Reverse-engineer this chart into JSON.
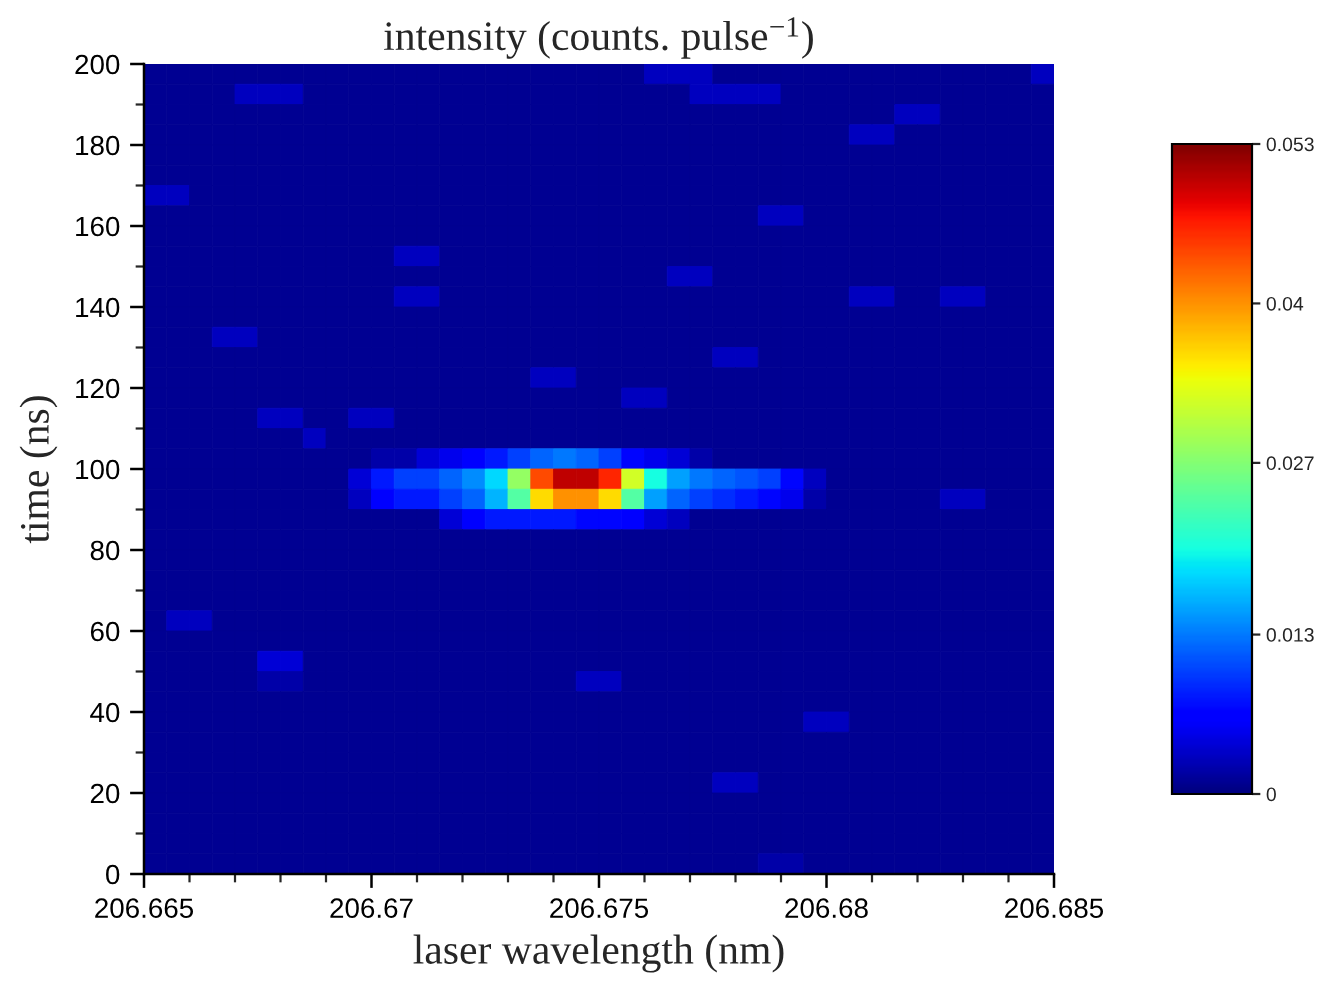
{
  "chart_data": {
    "type": "heatmap",
    "title": "intensity (counts. pulse$^{−1}$)",
    "xlabel": "laser wavelength (nm)",
    "ylabel": "time (ns)",
    "cells": [
      [
        0.001,
        0.001,
        0.001,
        0.001,
        0.001,
        0.001,
        0.001,
        0.001,
        0.001,
        0.001,
        0.001,
        0.001,
        0.001,
        0.001,
        0.001,
        0.001,
        0.001,
        0.001,
        0.001,
        0.001,
        0.001,
        0.001,
        0.003,
        0.003,
        0.003,
        0.001,
        0.001,
        0.001,
        0.001,
        0.001,
        0.001,
        0.001,
        0.001,
        0.001,
        0.001,
        0.001,
        0.001,
        0.001,
        0.001,
        0.003
      ],
      [
        0.001,
        0.001,
        0.001,
        0.001,
        0.003,
        0.003,
        0.003,
        0.001,
        0.001,
        0.001,
        0.001,
        0.001,
        0.001,
        0.001,
        0.001,
        0.001,
        0.001,
        0.001,
        0.001,
        0.001,
        0.001,
        0.001,
        0.001,
        0.001,
        0.003,
        0.003,
        0.003,
        0.003,
        0.001,
        0.001,
        0.001,
        0.001,
        0.001,
        0.001,
        0.001,
        0.001,
        0.001,
        0.001,
        0.001,
        0.001
      ],
      [
        0.001,
        0.001,
        0.001,
        0.001,
        0.001,
        0.001,
        0.001,
        0.001,
        0.001,
        0.001,
        0.001,
        0.001,
        0.001,
        0.001,
        0.001,
        0.001,
        0.001,
        0.001,
        0.001,
        0.001,
        0.001,
        0.001,
        0.001,
        0.001,
        0.001,
        0.001,
        0.001,
        0.001,
        0.001,
        0.001,
        0.001,
        0.001,
        0.001,
        0.003,
        0.003,
        0.001,
        0.001,
        0.001,
        0.001,
        0.001
      ],
      [
        0.001,
        0.001,
        0.001,
        0.001,
        0.001,
        0.001,
        0.001,
        0.001,
        0.001,
        0.001,
        0.001,
        0.001,
        0.001,
        0.001,
        0.001,
        0.001,
        0.001,
        0.001,
        0.001,
        0.001,
        0.001,
        0.001,
        0.001,
        0.001,
        0.001,
        0.001,
        0.001,
        0.001,
        0.001,
        0.001,
        0.001,
        0.003,
        0.003,
        0.001,
        0.001,
        0.001,
        0.001,
        0.001,
        0.001,
        0.001
      ],
      [
        0.001,
        0.001,
        0.001,
        0.001,
        0.001,
        0.001,
        0.001,
        0.001,
        0.001,
        0.001,
        0.001,
        0.001,
        0.001,
        0.001,
        0.001,
        0.001,
        0.001,
        0.001,
        0.001,
        0.001,
        0.001,
        0.001,
        0.001,
        0.001,
        0.001,
        0.001,
        0.001,
        0.001,
        0.001,
        0.001,
        0.001,
        0.001,
        0.001,
        0.001,
        0.001,
        0.001,
        0.001,
        0.001,
        0.001,
        0.001
      ],
      [
        0.001,
        0.001,
        0.001,
        0.001,
        0.001,
        0.001,
        0.001,
        0.001,
        0.001,
        0.001,
        0.001,
        0.001,
        0.001,
        0.001,
        0.001,
        0.001,
        0.001,
        0.001,
        0.001,
        0.001,
        0.001,
        0.001,
        0.001,
        0.001,
        0.001,
        0.001,
        0.001,
        0.001,
        0.001,
        0.001,
        0.001,
        0.001,
        0.001,
        0.001,
        0.001,
        0.001,
        0.001,
        0.001,
        0.001,
        0.001
      ],
      [
        0.003,
        0.003,
        0.001,
        0.001,
        0.001,
        0.001,
        0.001,
        0.001,
        0.001,
        0.001,
        0.001,
        0.001,
        0.001,
        0.001,
        0.001,
        0.001,
        0.001,
        0.001,
        0.001,
        0.001,
        0.001,
        0.001,
        0.001,
        0.001,
        0.001,
        0.001,
        0.001,
        0.001,
        0.001,
        0.001,
        0.001,
        0.001,
        0.001,
        0.001,
        0.001,
        0.001,
        0.001,
        0.001,
        0.001,
        0.001
      ],
      [
        0.001,
        0.001,
        0.001,
        0.001,
        0.001,
        0.001,
        0.001,
        0.001,
        0.001,
        0.001,
        0.001,
        0.001,
        0.001,
        0.001,
        0.001,
        0.001,
        0.001,
        0.001,
        0.001,
        0.001,
        0.001,
        0.001,
        0.001,
        0.001,
        0.001,
        0.001,
        0.001,
        0.003,
        0.003,
        0.001,
        0.001,
        0.001,
        0.001,
        0.001,
        0.001,
        0.001,
        0.001,
        0.001,
        0.001,
        0.001
      ],
      [
        0.001,
        0.001,
        0.001,
        0.001,
        0.001,
        0.001,
        0.001,
        0.001,
        0.001,
        0.001,
        0.001,
        0.001,
        0.001,
        0.001,
        0.001,
        0.001,
        0.001,
        0.001,
        0.001,
        0.001,
        0.001,
        0.001,
        0.001,
        0.001,
        0.001,
        0.001,
        0.001,
        0.001,
        0.001,
        0.001,
        0.001,
        0.001,
        0.001,
        0.001,
        0.001,
        0.001,
        0.001,
        0.001,
        0.001,
        0.001
      ],
      [
        0.001,
        0.001,
        0.001,
        0.001,
        0.001,
        0.001,
        0.001,
        0.001,
        0.001,
        0.001,
        0.001,
        0.003,
        0.003,
        0.001,
        0.001,
        0.001,
        0.001,
        0.001,
        0.001,
        0.001,
        0.001,
        0.001,
        0.001,
        0.001,
        0.001,
        0.001,
        0.001,
        0.001,
        0.001,
        0.001,
        0.001,
        0.001,
        0.001,
        0.001,
        0.001,
        0.001,
        0.001,
        0.001,
        0.001,
        0.001
      ],
      [
        0.001,
        0.001,
        0.001,
        0.001,
        0.001,
        0.001,
        0.001,
        0.001,
        0.001,
        0.001,
        0.001,
        0.001,
        0.001,
        0.001,
        0.001,
        0.001,
        0.001,
        0.001,
        0.001,
        0.001,
        0.001,
        0.001,
        0.001,
        0.003,
        0.003,
        0.001,
        0.001,
        0.001,
        0.001,
        0.001,
        0.001,
        0.001,
        0.001,
        0.001,
        0.001,
        0.001,
        0.001,
        0.001,
        0.001,
        0.001
      ],
      [
        0.001,
        0.001,
        0.001,
        0.001,
        0.001,
        0.001,
        0.001,
        0.001,
        0.001,
        0.001,
        0.001,
        0.003,
        0.003,
        0.001,
        0.001,
        0.001,
        0.001,
        0.001,
        0.001,
        0.001,
        0.001,
        0.001,
        0.001,
        0.001,
        0.001,
        0.001,
        0.001,
        0.001,
        0.001,
        0.001,
        0.001,
        0.003,
        0.003,
        0.001,
        0.001,
        0.003,
        0.003,
        0.001,
        0.001,
        0.001
      ],
      [
        0.001,
        0.001,
        0.001,
        0.001,
        0.001,
        0.001,
        0.001,
        0.001,
        0.001,
        0.001,
        0.001,
        0.001,
        0.001,
        0.001,
        0.001,
        0.001,
        0.001,
        0.001,
        0.001,
        0.001,
        0.001,
        0.001,
        0.001,
        0.001,
        0.001,
        0.001,
        0.001,
        0.001,
        0.001,
        0.001,
        0.001,
        0.001,
        0.001,
        0.001,
        0.001,
        0.001,
        0.001,
        0.001,
        0.001,
        0.001
      ],
      [
        0.001,
        0.001,
        0.001,
        0.003,
        0.003,
        0.001,
        0.001,
        0.001,
        0.001,
        0.001,
        0.001,
        0.001,
        0.001,
        0.001,
        0.001,
        0.001,
        0.001,
        0.001,
        0.001,
        0.001,
        0.001,
        0.001,
        0.001,
        0.001,
        0.001,
        0.001,
        0.001,
        0.001,
        0.001,
        0.001,
        0.001,
        0.001,
        0.001,
        0.001,
        0.001,
        0.001,
        0.001,
        0.001,
        0.001,
        0.001
      ],
      [
        0.001,
        0.001,
        0.001,
        0.001,
        0.001,
        0.001,
        0.001,
        0.001,
        0.001,
        0.001,
        0.001,
        0.001,
        0.001,
        0.001,
        0.001,
        0.001,
        0.001,
        0.001,
        0.001,
        0.001,
        0.001,
        0.001,
        0.001,
        0.001,
        0.001,
        0.003,
        0.003,
        0.001,
        0.001,
        0.001,
        0.001,
        0.001,
        0.001,
        0.001,
        0.001,
        0.001,
        0.001,
        0.001,
        0.001,
        0.001
      ],
      [
        0.001,
        0.001,
        0.001,
        0.001,
        0.001,
        0.001,
        0.001,
        0.001,
        0.001,
        0.001,
        0.001,
        0.001,
        0.001,
        0.001,
        0.001,
        0.001,
        0.001,
        0.003,
        0.003,
        0.001,
        0.001,
        0.001,
        0.001,
        0.001,
        0.001,
        0.001,
        0.001,
        0.001,
        0.001,
        0.001,
        0.001,
        0.001,
        0.001,
        0.001,
        0.001,
        0.001,
        0.001,
        0.001,
        0.001,
        0.001
      ],
      [
        0.001,
        0.001,
        0.001,
        0.001,
        0.001,
        0.001,
        0.001,
        0.001,
        0.001,
        0.001,
        0.001,
        0.001,
        0.001,
        0.001,
        0.001,
        0.001,
        0.001,
        0.001,
        0.001,
        0.001,
        0.001,
        0.003,
        0.003,
        0.001,
        0.001,
        0.001,
        0.001,
        0.001,
        0.001,
        0.001,
        0.001,
        0.001,
        0.001,
        0.001,
        0.001,
        0.001,
        0.001,
        0.001,
        0.001,
        0.001
      ],
      [
        0.001,
        0.001,
        0.001,
        0.001,
        0.001,
        0.003,
        0.003,
        0.001,
        0.001,
        0.003,
        0.003,
        0.001,
        0.001,
        0.001,
        0.001,
        0.001,
        0.001,
        0.001,
        0.001,
        0.001,
        0.001,
        0.001,
        0.001,
        0.001,
        0.001,
        0.001,
        0.001,
        0.001,
        0.001,
        0.001,
        0.001,
        0.001,
        0.001,
        0.001,
        0.001,
        0.001,
        0.001,
        0.001,
        0.001,
        0.001
      ],
      [
        0.001,
        0.001,
        0.001,
        0.001,
        0.001,
        0.001,
        0.001,
        0.003,
        0.001,
        0.001,
        0.001,
        0.001,
        0.001,
        0.001,
        0.001,
        0.001,
        0.001,
        0.001,
        0.001,
        0.001,
        0.001,
        0.001,
        0.001,
        0.001,
        0.001,
        0.001,
        0.001,
        0.001,
        0.001,
        0.001,
        0.001,
        0.001,
        0.001,
        0.001,
        0.001,
        0.001,
        0.001,
        0.001,
        0.001,
        0.001
      ],
      [
        0.001,
        0.001,
        0.001,
        0.001,
        0.001,
        0.001,
        0.001,
        0.001,
        0.001,
        0.001,
        0.002,
        0.002,
        0.004,
        0.005,
        0.006,
        0.008,
        0.01,
        0.012,
        0.013,
        0.012,
        0.01,
        0.007,
        0.005,
        0.004,
        0.002,
        0.001,
        0.001,
        0.001,
        0.001,
        0.001,
        0.001,
        0.001,
        0.001,
        0.001,
        0.001,
        0.001,
        0.001,
        0.001,
        0.001,
        0.001
      ],
      [
        0.001,
        0.001,
        0.001,
        0.001,
        0.001,
        0.001,
        0.001,
        0.001,
        0.001,
        0.004,
        0.008,
        0.01,
        0.01,
        0.012,
        0.014,
        0.018,
        0.028,
        0.044,
        0.05,
        0.05,
        0.046,
        0.032,
        0.02,
        0.015,
        0.013,
        0.012,
        0.011,
        0.01,
        0.007,
        0.003,
        0.001,
        0.001,
        0.001,
        0.001,
        0.001,
        0.001,
        0.001,
        0.001,
        0.001,
        0.001
      ],
      [
        0.001,
        0.001,
        0.001,
        0.001,
        0.001,
        0.001,
        0.001,
        0.001,
        0.001,
        0.003,
        0.006,
        0.008,
        0.008,
        0.01,
        0.012,
        0.016,
        0.024,
        0.036,
        0.04,
        0.04,
        0.036,
        0.024,
        0.015,
        0.012,
        0.01,
        0.009,
        0.008,
        0.007,
        0.005,
        0.002,
        0.001,
        0.001,
        0.001,
        0.001,
        0.001,
        0.003,
        0.003,
        0.001,
        0.001,
        0.001
      ],
      [
        0.001,
        0.001,
        0.001,
        0.001,
        0.001,
        0.001,
        0.001,
        0.001,
        0.001,
        0.001,
        0.001,
        0.001,
        0.001,
        0.004,
        0.006,
        0.008,
        0.008,
        0.008,
        0.008,
        0.007,
        0.007,
        0.006,
        0.004,
        0.003,
        0.001,
        0.001,
        0.001,
        0.001,
        0.001,
        0.001,
        0.001,
        0.001,
        0.001,
        0.001,
        0.001,
        0.001,
        0.001,
        0.001,
        0.001,
        0.001
      ],
      [
        0.001,
        0.001,
        0.001,
        0.001,
        0.001,
        0.001,
        0.001,
        0.001,
        0.001,
        0.001,
        0.001,
        0.001,
        0.001,
        0.001,
        0.001,
        0.001,
        0.001,
        0.001,
        0.001,
        0.001,
        0.001,
        0.001,
        0.001,
        0.001,
        0.001,
        0.001,
        0.001,
        0.001,
        0.001,
        0.001,
        0.001,
        0.001,
        0.001,
        0.001,
        0.001,
        0.001,
        0.001,
        0.001,
        0.001,
        0.001
      ],
      [
        0.001,
        0.001,
        0.001,
        0.001,
        0.001,
        0.001,
        0.001,
        0.001,
        0.001,
        0.001,
        0.001,
        0.001,
        0.001,
        0.001,
        0.001,
        0.001,
        0.001,
        0.001,
        0.001,
        0.001,
        0.001,
        0.001,
        0.001,
        0.001,
        0.001,
        0.001,
        0.001,
        0.001,
        0.001,
        0.001,
        0.001,
        0.001,
        0.001,
        0.001,
        0.001,
        0.001,
        0.001,
        0.001,
        0.001,
        0.001
      ],
      [
        0.001,
        0.001,
        0.001,
        0.001,
        0.001,
        0.001,
        0.001,
        0.001,
        0.001,
        0.001,
        0.001,
        0.001,
        0.001,
        0.001,
        0.001,
        0.001,
        0.001,
        0.001,
        0.001,
        0.001,
        0.001,
        0.001,
        0.001,
        0.001,
        0.001,
        0.001,
        0.001,
        0.001,
        0.001,
        0.001,
        0.001,
        0.001,
        0.001,
        0.001,
        0.001,
        0.001,
        0.001,
        0.001,
        0.001,
        0.001
      ],
      [
        0.001,
        0.001,
        0.001,
        0.001,
        0.001,
        0.001,
        0.001,
        0.001,
        0.001,
        0.001,
        0.001,
        0.001,
        0.001,
        0.001,
        0.001,
        0.001,
        0.001,
        0.001,
        0.001,
        0.001,
        0.001,
        0.001,
        0.001,
        0.001,
        0.001,
        0.001,
        0.001,
        0.001,
        0.001,
        0.001,
        0.001,
        0.001,
        0.001,
        0.001,
        0.001,
        0.001,
        0.001,
        0.001,
        0.001,
        0.001
      ],
      [
        0.001,
        0.003,
        0.003,
        0.001,
        0.001,
        0.001,
        0.001,
        0.001,
        0.001,
        0.001,
        0.001,
        0.001,
        0.001,
        0.001,
        0.001,
        0.001,
        0.001,
        0.001,
        0.001,
        0.001,
        0.001,
        0.001,
        0.001,
        0.001,
        0.001,
        0.001,
        0.001,
        0.001,
        0.001,
        0.001,
        0.001,
        0.001,
        0.001,
        0.001,
        0.001,
        0.001,
        0.001,
        0.001,
        0.001,
        0.001
      ],
      [
        0.001,
        0.001,
        0.001,
        0.001,
        0.001,
        0.001,
        0.001,
        0.001,
        0.001,
        0.001,
        0.001,
        0.001,
        0.001,
        0.001,
        0.001,
        0.001,
        0.001,
        0.001,
        0.001,
        0.001,
        0.001,
        0.001,
        0.001,
        0.001,
        0.001,
        0.001,
        0.001,
        0.001,
        0.001,
        0.001,
        0.001,
        0.001,
        0.001,
        0.001,
        0.001,
        0.001,
        0.001,
        0.001,
        0.001,
        0.001
      ],
      [
        0.001,
        0.001,
        0.001,
        0.001,
        0.001,
        0.004,
        0.004,
        0.001,
        0.001,
        0.001,
        0.001,
        0.001,
        0.001,
        0.001,
        0.001,
        0.001,
        0.001,
        0.001,
        0.001,
        0.001,
        0.001,
        0.001,
        0.001,
        0.001,
        0.001,
        0.001,
        0.001,
        0.001,
        0.001,
        0.001,
        0.001,
        0.001,
        0.001,
        0.001,
        0.001,
        0.001,
        0.001,
        0.001,
        0.001,
        0.001
      ],
      [
        0.001,
        0.001,
        0.001,
        0.001,
        0.001,
        0.002,
        0.002,
        0.001,
        0.001,
        0.001,
        0.001,
        0.001,
        0.001,
        0.001,
        0.001,
        0.001,
        0.001,
        0.001,
        0.001,
        0.003,
        0.003,
        0.001,
        0.001,
        0.001,
        0.001,
        0.001,
        0.001,
        0.001,
        0.001,
        0.001,
        0.001,
        0.001,
        0.001,
        0.001,
        0.001,
        0.001,
        0.001,
        0.001,
        0.001,
        0.001
      ],
      [
        0.001,
        0.001,
        0.001,
        0.001,
        0.001,
        0.001,
        0.001,
        0.001,
        0.001,
        0.001,
        0.001,
        0.001,
        0.001,
        0.001,
        0.001,
        0.001,
        0.001,
        0.001,
        0.001,
        0.001,
        0.001,
        0.001,
        0.001,
        0.001,
        0.001,
        0.001,
        0.001,
        0.001,
        0.001,
        0.001,
        0.001,
        0.001,
        0.001,
        0.001,
        0.001,
        0.001,
        0.001,
        0.001,
        0.001,
        0.001
      ],
      [
        0.001,
        0.001,
        0.001,
        0.001,
        0.001,
        0.001,
        0.001,
        0.001,
        0.001,
        0.001,
        0.001,
        0.001,
        0.001,
        0.001,
        0.001,
        0.001,
        0.001,
        0.001,
        0.001,
        0.001,
        0.001,
        0.001,
        0.001,
        0.001,
        0.001,
        0.001,
        0.001,
        0.001,
        0.001,
        0.003,
        0.003,
        0.001,
        0.001,
        0.001,
        0.001,
        0.001,
        0.001,
        0.001,
        0.001,
        0.001
      ],
      [
        0.001,
        0.001,
        0.001,
        0.001,
        0.001,
        0.001,
        0.001,
        0.001,
        0.001,
        0.001,
        0.001,
        0.001,
        0.001,
        0.001,
        0.001,
        0.001,
        0.001,
        0.001,
        0.001,
        0.001,
        0.001,
        0.001,
        0.001,
        0.001,
        0.001,
        0.001,
        0.001,
        0.001,
        0.001,
        0.001,
        0.001,
        0.001,
        0.001,
        0.001,
        0.001,
        0.001,
        0.001,
        0.001,
        0.001,
        0.001
      ],
      [
        0.001,
        0.001,
        0.001,
        0.001,
        0.001,
        0.001,
        0.001,
        0.001,
        0.001,
        0.001,
        0.001,
        0.001,
        0.001,
        0.001,
        0.001,
        0.001,
        0.001,
        0.001,
        0.001,
        0.001,
        0.001,
        0.001,
        0.001,
        0.001,
        0.001,
        0.001,
        0.001,
        0.001,
        0.001,
        0.001,
        0.001,
        0.001,
        0.001,
        0.001,
        0.001,
        0.001,
        0.001,
        0.001,
        0.001,
        0.001
      ],
      [
        0.001,
        0.001,
        0.001,
        0.001,
        0.001,
        0.001,
        0.001,
        0.001,
        0.001,
        0.001,
        0.001,
        0.001,
        0.001,
        0.001,
        0.001,
        0.001,
        0.001,
        0.001,
        0.001,
        0.001,
        0.001,
        0.001,
        0.001,
        0.001,
        0.001,
        0.003,
        0.003,
        0.001,
        0.001,
        0.001,
        0.001,
        0.001,
        0.001,
        0.001,
        0.001,
        0.001,
        0.001,
        0.001,
        0.001,
        0.001
      ],
      [
        0.001,
        0.001,
        0.001,
        0.001,
        0.001,
        0.001,
        0.001,
        0.001,
        0.001,
        0.001,
        0.001,
        0.001,
        0.001,
        0.001,
        0.001,
        0.001,
        0.001,
        0.001,
        0.001,
        0.001,
        0.001,
        0.001,
        0.001,
        0.001,
        0.001,
        0.001,
        0.001,
        0.001,
        0.001,
        0.001,
        0.001,
        0.001,
        0.001,
        0.001,
        0.001,
        0.001,
        0.001,
        0.001,
        0.001,
        0.001
      ],
      [
        0.001,
        0.001,
        0.001,
        0.001,
        0.001,
        0.001,
        0.001,
        0.001,
        0.001,
        0.001,
        0.001,
        0.001,
        0.001,
        0.001,
        0.001,
        0.001,
        0.001,
        0.001,
        0.001,
        0.001,
        0.001,
        0.001,
        0.001,
        0.001,
        0.001,
        0.001,
        0.001,
        0.001,
        0.001,
        0.001,
        0.001,
        0.001,
        0.001,
        0.001,
        0.001,
        0.001,
        0.001,
        0.001,
        0.001,
        0.001
      ],
      [
        0.001,
        0.001,
        0.001,
        0.001,
        0.001,
        0.001,
        0.001,
        0.001,
        0.001,
        0.001,
        0.001,
        0.001,
        0.001,
        0.001,
        0.001,
        0.001,
        0.001,
        0.001,
        0.001,
        0.001,
        0.001,
        0.001,
        0.001,
        0.001,
        0.001,
        0.001,
        0.001,
        0.001,
        0.001,
        0.001,
        0.001,
        0.001,
        0.001,
        0.001,
        0.001,
        0.001,
        0.001,
        0.001,
        0.001,
        0.001
      ],
      [
        0.001,
        0.001,
        0.001,
        0.001,
        0.001,
        0.001,
        0.001,
        0.001,
        0.001,
        0.001,
        0.001,
        0.001,
        0.001,
        0.001,
        0.001,
        0.001,
        0.001,
        0.001,
        0.001,
        0.001,
        0.001,
        0.001,
        0.001,
        0.001,
        0.001,
        0.001,
        0.001,
        0.002,
        0.002,
        0.001,
        0.001,
        0.001,
        0.001,
        0.001,
        0.001,
        0.001,
        0.001,
        0.001,
        0.001,
        0.001
      ]
    ],
    "xlim": [
      206.665,
      206.685
    ],
    "xticks": [
      206.665,
      {
        "value": 206.666,
        "label": null
      },
      {
        "value": 206.667,
        "label": null
      },
      {
        "value": 206.668,
        "label": null
      },
      {
        "value": 206.669,
        "label": null
      },
      206.67,
      {
        "value": 206.671,
        "label": null
      },
      {
        "value": 206.672,
        "label": null
      },
      {
        "value": 206.673,
        "label": null
      },
      {
        "value": 206.674,
        "label": null
      },
      206.675,
      {
        "value": 206.676,
        "label": null
      },
      {
        "value": 206.677,
        "label": null
      },
      {
        "value": 206.678,
        "label": null
      },
      {
        "value": 206.679,
        "label": null
      },
      206.68,
      {
        "value": 206.681,
        "label": null
      },
      {
        "value": 206.682,
        "label": null
      },
      {
        "value": 206.683,
        "label": null
      },
      {
        "value": 206.684,
        "label": null
      },
      206.685
    ],
    "ylim": [
      0,
      200
    ],
    "yticks": [
      0,
      {
        "value": 10,
        "label": null
      },
      20,
      {
        "value": 30,
        "label": null
      },
      40,
      {
        "value": 50,
        "label": null
      },
      60,
      {
        "value": 70,
        "label": null
      },
      80,
      {
        "value": 90,
        "label": null
      },
      100,
      {
        "value": 110,
        "label": null
      },
      120,
      {
        "value": 130,
        "label": null
      },
      140,
      {
        "value": 150,
        "label": null
      },
      160,
      {
        "value": 170,
        "label": null
      },
      180,
      {
        "value": 190,
        "label": null
      },
      200
    ],
    "clim": [
      0,
      0.053
    ],
    "cticks": [
      0,
      0.013,
      0.027,
      0.04,
      0.053
    ]
  }
}
